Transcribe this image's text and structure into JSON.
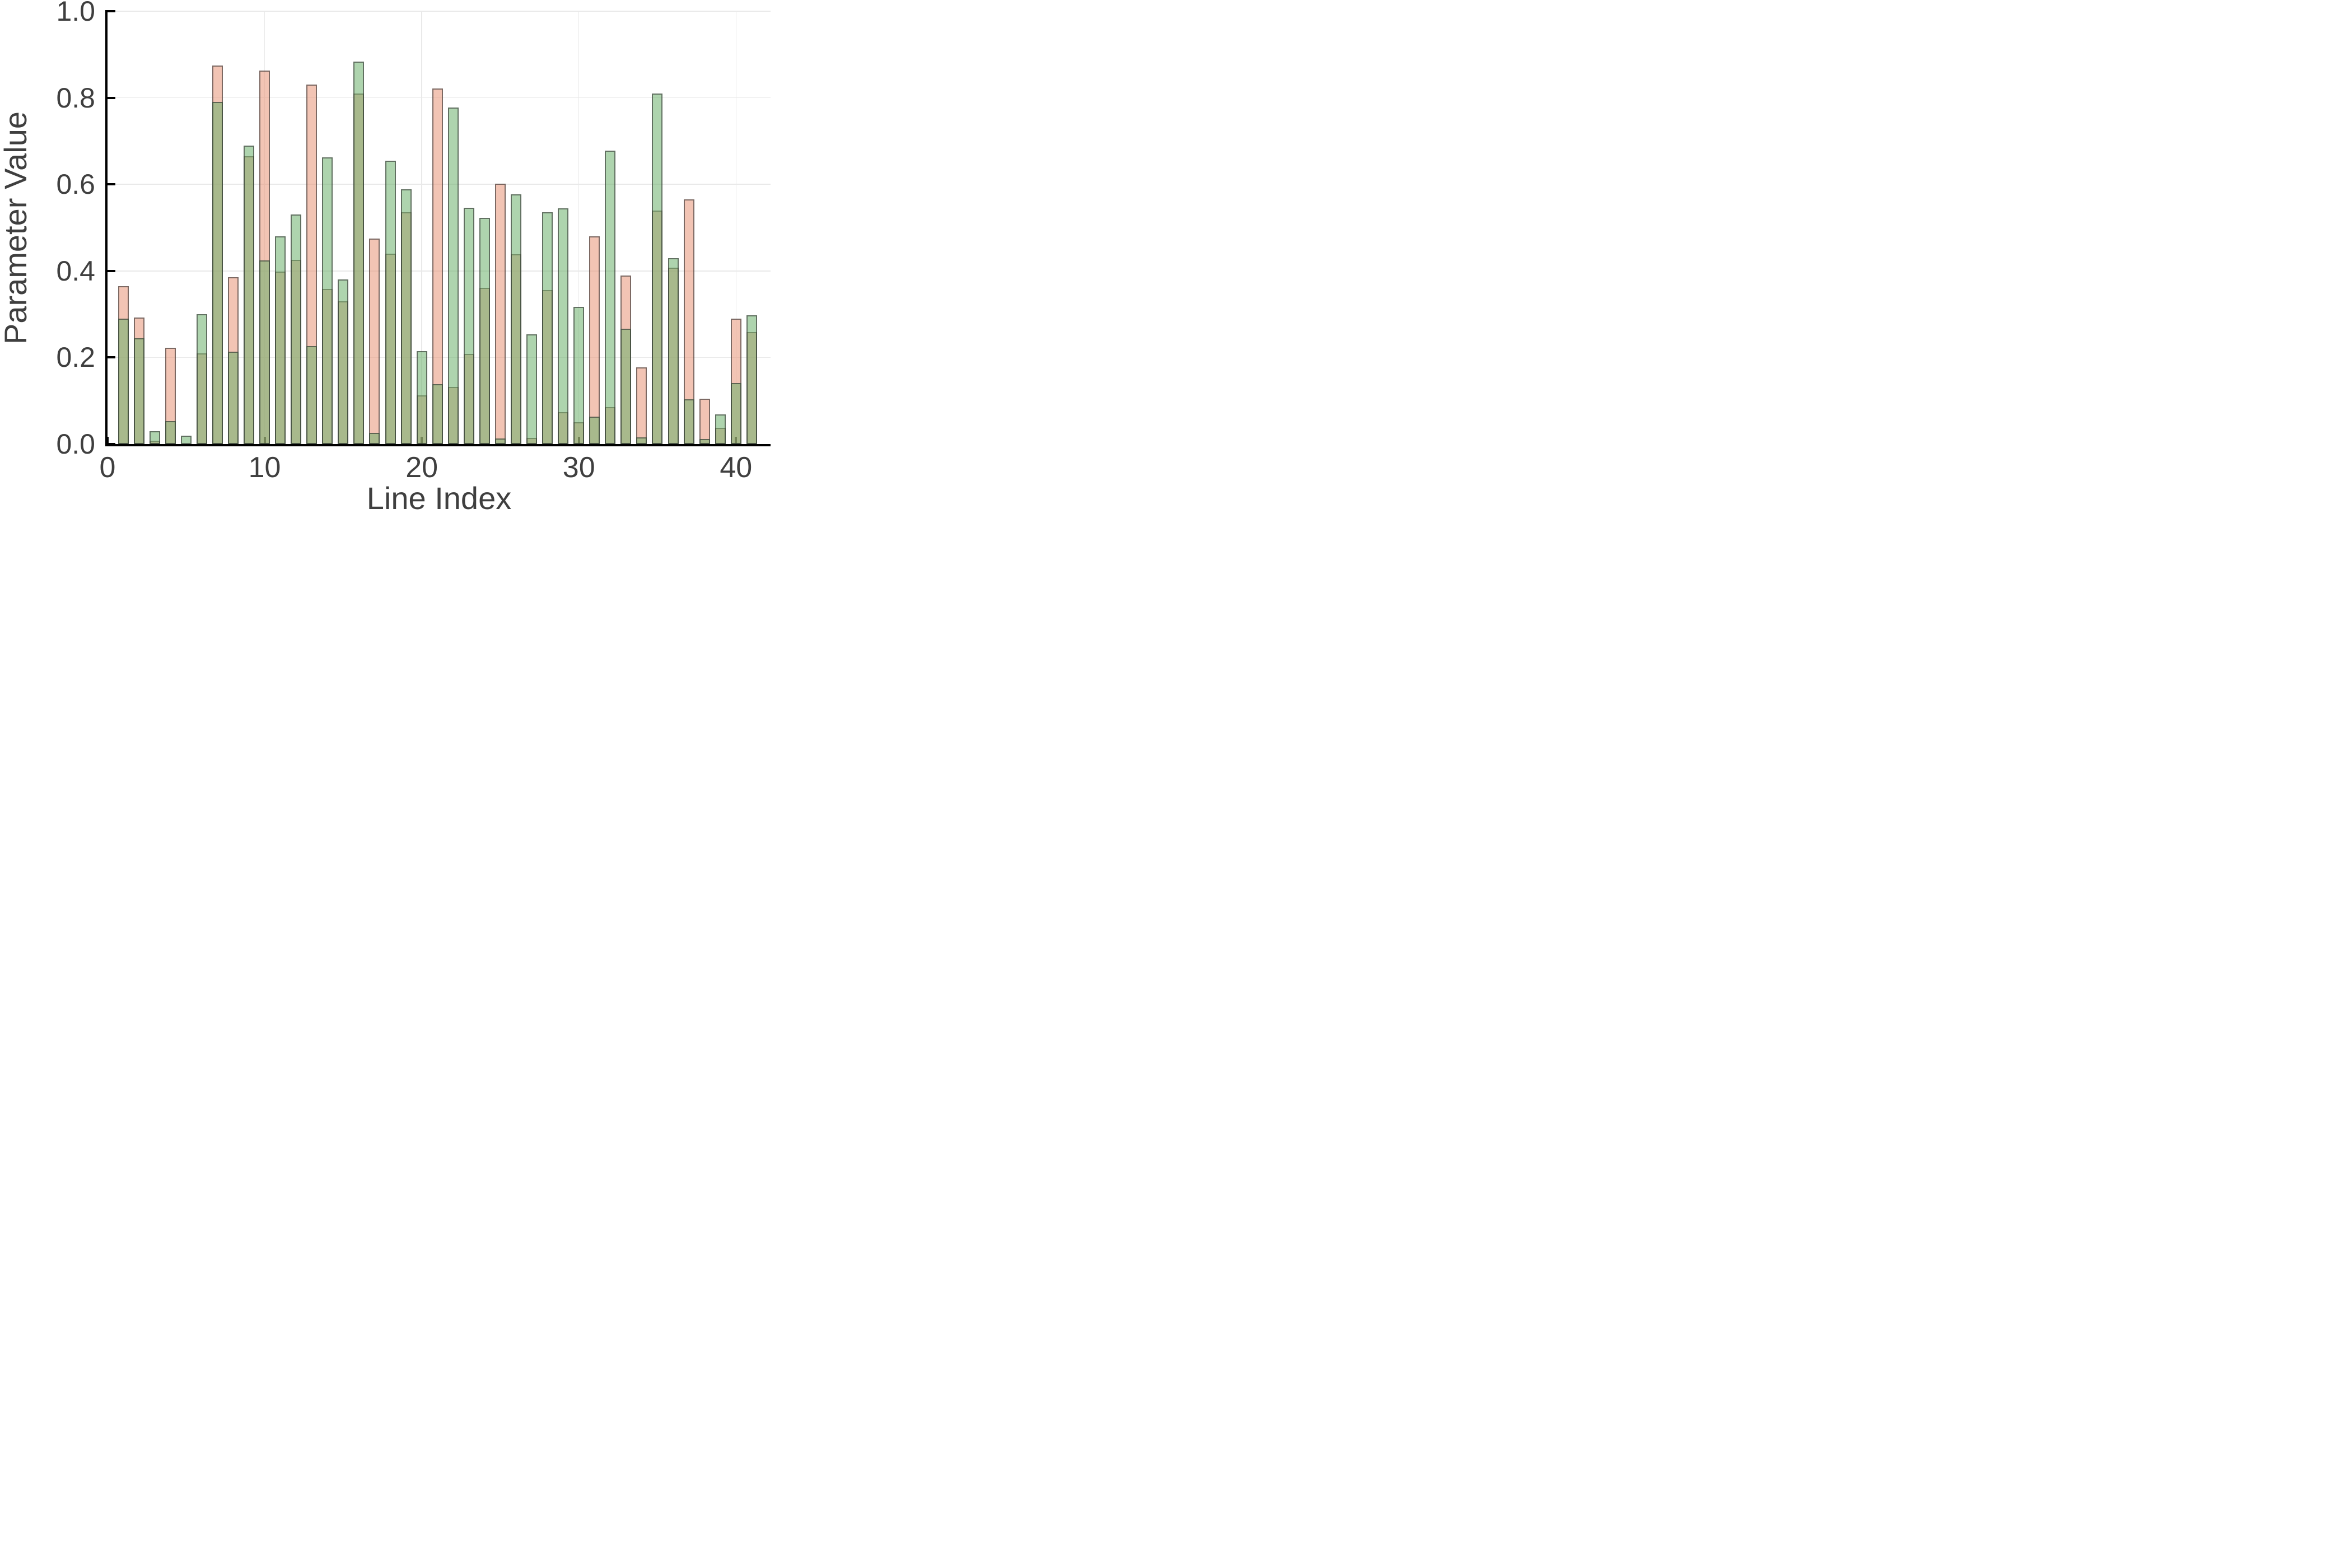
{
  "chart_data": {
    "type": "bar",
    "title": "",
    "xlabel": "Line Index",
    "ylabel": "Parameter Value",
    "x": [
      1,
      2,
      3,
      4,
      5,
      6,
      7,
      8,
      9,
      10,
      11,
      12,
      13,
      14,
      15,
      16,
      17,
      18,
      19,
      20,
      21,
      22,
      23,
      24,
      25,
      26,
      27,
      28,
      29,
      30,
      31,
      32,
      33,
      34,
      35,
      36,
      37,
      38,
      39,
      40,
      41
    ],
    "series": [
      {
        "name": "pink-series",
        "fill_hex_on_white": "#f2c4b4",
        "fill_rgba": "rgba(231,148,119,0.55)",
        "values": [
          0.365,
          0.292,
          0.008,
          0.223,
          0,
          0.21,
          0.875,
          0.385,
          0.665,
          0.863,
          0.398,
          0.425,
          0.83,
          0.358,
          0.33,
          0.81,
          0.475,
          0.44,
          0.535,
          0.113,
          0.822,
          0.132,
          0.208,
          0.361,
          0.602,
          0.438,
          0.014,
          0.356,
          0.074,
          0.051,
          0.48,
          0.086,
          0.389,
          0.177,
          0.54,
          0.408,
          0.565,
          0.105,
          0.037,
          0.29,
          0.259
        ]
      },
      {
        "name": "green-series",
        "fill_hex_on_white": "#aed4ae",
        "fill_rgba": "rgba(108,177,108,0.55)",
        "values": [
          0.29,
          0.245,
          0.03,
          0.053,
          0.02,
          0.3,
          0.79,
          0.213,
          0.69,
          0.424,
          0.48,
          0.53,
          0.227,
          0.663,
          0.38,
          0.884,
          0.026,
          0.655,
          0.588,
          0.215,
          0.138,
          0.777,
          0.546,
          0.522,
          0.013,
          0.577,
          0.254,
          0.535,
          0.545,
          0.317,
          0.064,
          0.678,
          0.266,
          0.015,
          0.81,
          0.429,
          0.104,
          0.011,
          0.068,
          0.141,
          0.298
        ]
      }
    ],
    "overlap_hex_on_white": "#a9b489",
    "bar_border_rgba": "rgba(45,45,45,0.60)",
    "axis_color": "#000000",
    "gridline_color": "#e9e9e9",
    "label_color": "#3f3f3f",
    "ylim": [
      0,
      1.0
    ],
    "xlim": [
      0,
      42.2
    ],
    "yticks": [
      {
        "v": 0,
        "label": "0.0"
      },
      {
        "v": 0.2,
        "label": "0.2"
      },
      {
        "v": 0.4,
        "label": "0.4"
      },
      {
        "v": 0.6,
        "label": "0.6"
      },
      {
        "v": 0.8,
        "label": "0.8"
      },
      {
        "v": 1.0,
        "label": "1.0"
      }
    ],
    "xticks": [
      {
        "v": 0,
        "label": "0"
      },
      {
        "v": 10,
        "label": "10"
      },
      {
        "v": 20,
        "label": "20"
      },
      {
        "v": 30,
        "label": "30"
      },
      {
        "v": 40,
        "label": "40"
      }
    ],
    "grid": {
      "horizontal_at": [
        0.2,
        0.4,
        0.6,
        0.8,
        1.0
      ],
      "vertical_at": [
        10,
        20,
        30,
        40
      ]
    },
    "legend": "none"
  }
}
